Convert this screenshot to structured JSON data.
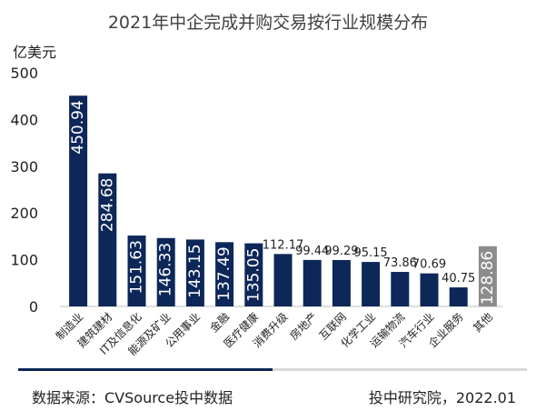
{
  "chart_data": {
    "type": "bar",
    "title": "2021年中企完成并购交易按行业规模分布",
    "ylabel": "亿美元",
    "xlabel": "",
    "ylim": [
      0,
      500
    ],
    "yticks": [
      0,
      100,
      200,
      300,
      400,
      500
    ],
    "grid": false,
    "categories": [
      "制造业",
      "建筑建材",
      "IT及信息化",
      "能源及矿业",
      "公用事业",
      "金融",
      "医疗健康",
      "消费升级",
      "房地产",
      "互联网",
      "化学工业",
      "运输物流",
      "汽车行业",
      "企业服务",
      "其他"
    ],
    "values": [
      450.94,
      284.68,
      151.63,
      146.33,
      143.15,
      137.49,
      135.05,
      112.17,
      99.44,
      99.29,
      95.15,
      73.86,
      70.69,
      40.75,
      128.86
    ],
    "value_labels": [
      "450.94",
      "284.68",
      "151.63",
      "146.33",
      "143.15",
      "137.49",
      "135.05",
      "112.17",
      "99.44",
      "99.29",
      "95.15",
      "73.86",
      "70.69",
      "40.75",
      "128.86"
    ],
    "bar_colors": [
      "#0d2759",
      "#0d2759",
      "#0d2759",
      "#0d2759",
      "#0d2759",
      "#0d2759",
      "#0d2759",
      "#0d2759",
      "#0d2759",
      "#0d2759",
      "#0d2759",
      "#0d2759",
      "#0d2759",
      "#0d2759",
      "#8c8c8c"
    ]
  },
  "footer": {
    "source": "数据来源：CVSource投中数据",
    "credit": "投中研究院，2022.01"
  },
  "colors": {
    "bar": "#0d2759",
    "bar_other": "#8c8c8c",
    "footer_accent": "#0d2759",
    "footer_base": "#d9d9d9"
  }
}
